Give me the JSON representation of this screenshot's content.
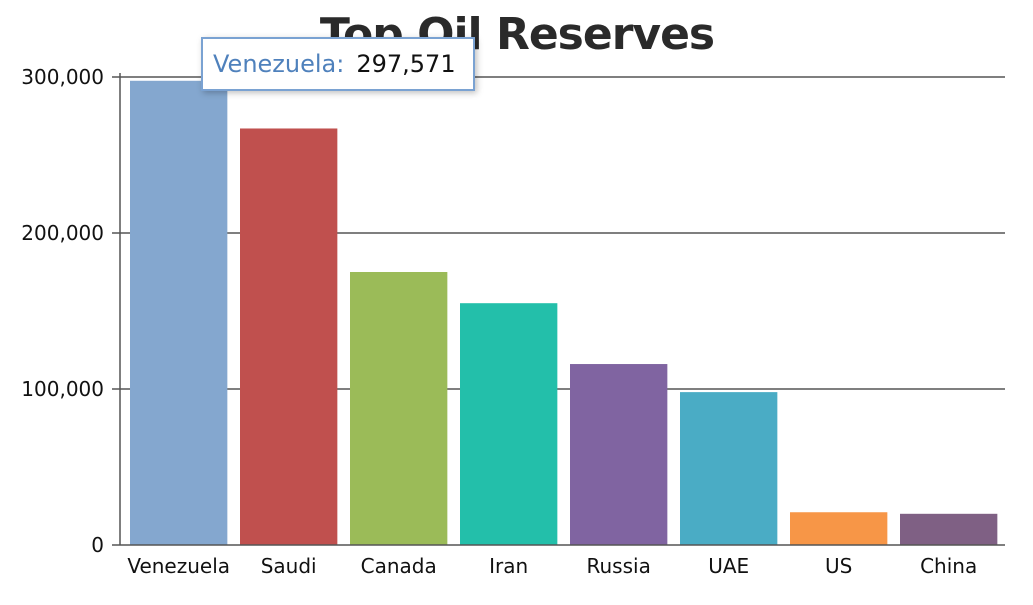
{
  "chart_data": {
    "type": "bar",
    "title": "Top Oil Reserves",
    "xlabel": "",
    "ylabel": "",
    "ylim": [
      0,
      300000
    ],
    "yticks": [
      0,
      100000,
      200000,
      300000
    ],
    "ytick_labels": [
      "0",
      "100,000",
      "200,000",
      "300,000"
    ],
    "categories": [
      "Venezuela",
      "Saudi",
      "Canada",
      "Iran",
      "Russia",
      "UAE",
      "US",
      "China"
    ],
    "values": [
      297571,
      267000,
      175000,
      155000,
      116000,
      98000,
      21000,
      20000
    ],
    "colors": [
      "#84a7cf",
      "#c0504e",
      "#9bbb58",
      "#23bfaa",
      "#8064a1",
      "#4aacc5",
      "#f79647",
      "#7f6084"
    ],
    "grid": true,
    "legend": "none"
  },
  "tooltip": {
    "name": "Venezuela",
    "separator": ":",
    "value": "297,571"
  }
}
